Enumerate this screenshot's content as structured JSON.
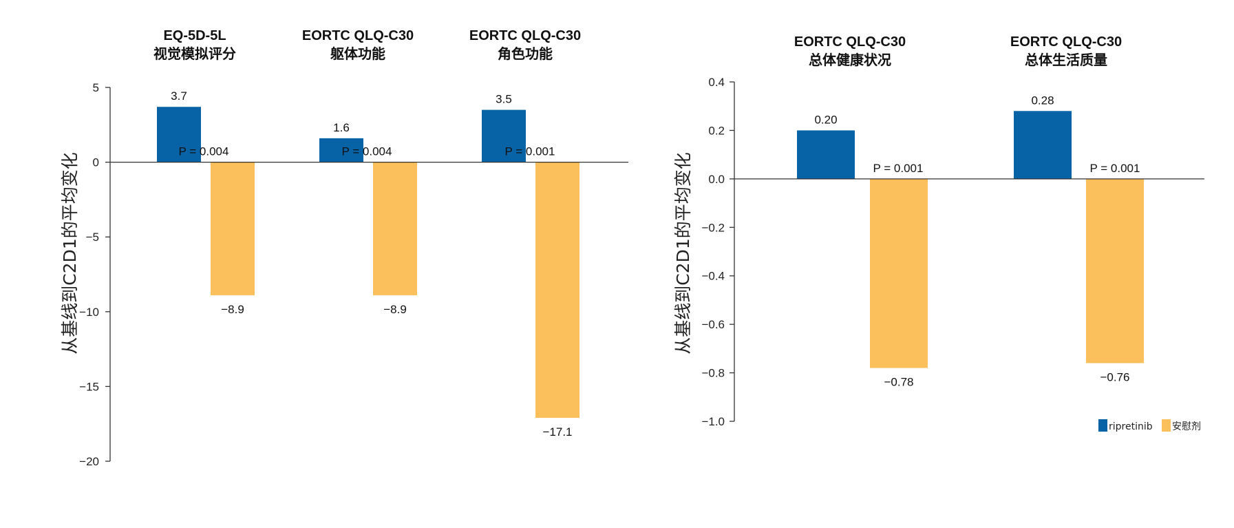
{
  "colors": {
    "ripretinib": "#0763a6",
    "placebo": "#fbc05c",
    "axis": "#333333"
  },
  "chart_data": [
    {
      "type": "bar",
      "ylabel": "从基线到C2D1的平均变化",
      "ylim": [
        -20,
        5
      ],
      "yticks": [
        "5",
        "0",
        "−5",
        "−10",
        "−15",
        "−20"
      ],
      "ytick_values": [
        5,
        0,
        -5,
        -10,
        -15,
        -20
      ],
      "groups": [
        {
          "title1": "EQ-5D-5L",
          "title2": "视觉模拟评分",
          "values": [
            3.7,
            -8.9
          ],
          "labels": [
            "3.7",
            "−8.9"
          ],
          "p": "P = 0.004"
        },
        {
          "title1": "EORTC QLQ-C30",
          "title2": "躯体功能",
          "values": [
            1.6,
            -8.9
          ],
          "labels": [
            "1.6",
            "−8.9"
          ],
          "p": "P = 0.004"
        },
        {
          "title1": "EORTC QLQ-C30",
          "title2": "角色功能",
          "values": [
            3.5,
            -17.1
          ],
          "labels": [
            "3.5",
            "−17.1"
          ],
          "p": "P = 0.001"
        }
      ]
    },
    {
      "type": "bar",
      "ylabel": "从基线到C2D1的平均变化",
      "ylim": [
        -1.0,
        0.4
      ],
      "yticks": [
        "0.4",
        "0.2",
        "0.0",
        "−0.2",
        "−0.4",
        "−0.6",
        "−0.8",
        "−1.0"
      ],
      "ytick_values": [
        0.4,
        0.2,
        0.0,
        -0.2,
        -0.4,
        -0.6,
        -0.8,
        -1.0
      ],
      "groups": [
        {
          "title1": "EORTC QLQ-C30",
          "title2": "总体健康状况",
          "values": [
            0.2,
            -0.78
          ],
          "labels": [
            "0.20",
            "−0.78"
          ],
          "p": "P = 0.001"
        },
        {
          "title1": "EORTC QLQ-C30",
          "title2": "总体生活质量",
          "values": [
            0.28,
            -0.76
          ],
          "labels": [
            "0.28",
            "−0.76"
          ],
          "p": "P = 0.001"
        }
      ],
      "legend": [
        {
          "label": "ripretinib",
          "color": "#0763a6"
        },
        {
          "label": "安慰剂",
          "color": "#fbc05c"
        }
      ]
    }
  ]
}
